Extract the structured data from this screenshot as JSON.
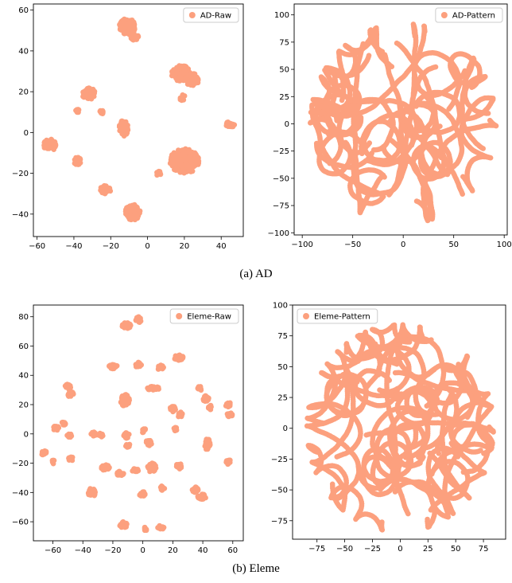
{
  "captions": {
    "a": "(a)  AD",
    "b": "(b)  Eleme"
  },
  "colors": {
    "points": "#FCA07E"
  },
  "chart_data": [
    {
      "type": "scatter",
      "id": "ad-raw",
      "legend": "AD-Raw",
      "legend_loc": "top-right",
      "xlim": [
        -62,
        52
      ],
      "ylim": [
        -51,
        63
      ],
      "xticks": [
        -60,
        -40,
        -20,
        0,
        20,
        40
      ],
      "yticks": [
        -40,
        -20,
        0,
        20,
        40,
        60
      ],
      "grid": false,
      "clusters": [
        {
          "x": -11,
          "y": 52,
          "rx": 4.5,
          "ry": 4
        },
        {
          "x": -7,
          "y": 47,
          "rx": 2.5,
          "ry": 2
        },
        {
          "x": 18,
          "y": 29,
          "rx": 5,
          "ry": 4
        },
        {
          "x": 24,
          "y": 26,
          "rx": 4,
          "ry": 3
        },
        {
          "x": 19,
          "y": 17,
          "rx": 1.5,
          "ry": 1.5
        },
        {
          "x": -32,
          "y": 19,
          "rx": 3.5,
          "ry": 3
        },
        {
          "x": -38,
          "y": 11,
          "rx": 1.2,
          "ry": 1.2
        },
        {
          "x": -25,
          "y": 10,
          "rx": 1,
          "ry": 1
        },
        {
          "x": -13,
          "y": 2,
          "rx": 2.5,
          "ry": 4
        },
        {
          "x": 45,
          "y": 4,
          "rx": 2.5,
          "ry": 1.5
        },
        {
          "x": -53,
          "y": -6,
          "rx": 3.5,
          "ry": 3
        },
        {
          "x": 20,
          "y": -14,
          "rx": 8,
          "ry": 6
        },
        {
          "x": 6,
          "y": -20,
          "rx": 1.3,
          "ry": 1.3
        },
        {
          "x": -38,
          "y": -14,
          "rx": 2,
          "ry": 2
        },
        {
          "x": -23,
          "y": -28,
          "rx": 3,
          "ry": 2
        },
        {
          "x": -8,
          "y": -39,
          "rx": 4,
          "ry": 4
        }
      ]
    },
    {
      "type": "scatter",
      "id": "ad-pattern",
      "legend": "AD-Pattern",
      "legend_loc": "top-right",
      "xlim": [
        -108,
        103
      ],
      "ylim": [
        -102,
        110
      ],
      "xticks": [
        -100,
        -50,
        0,
        50,
        100
      ],
      "yticks": [
        -100,
        -75,
        -50,
        -25,
        0,
        25,
        50,
        75,
        100
      ],
      "grid": false,
      "shape_radius": 92,
      "strands": 34,
      "seed": 7
    },
    {
      "type": "scatter",
      "id": "eleme-raw",
      "legend": "Eleme-Raw",
      "legend_loc": "top-right",
      "xlim": [
        -73,
        67
      ],
      "ylim": [
        -73,
        88
      ],
      "xticks": [
        -60,
        -40,
        -20,
        0,
        20,
        40,
        60
      ],
      "yticks": [
        -60,
        -40,
        -20,
        0,
        20,
        40,
        60,
        80
      ],
      "grid": false,
      "clusters": [
        {
          "x": -11,
          "y": 74,
          "rx": 3,
          "ry": 2
        },
        {
          "x": -3,
          "y": 78,
          "rx": 2,
          "ry": 2
        },
        {
          "x": -20,
          "y": 46,
          "rx": 3,
          "ry": 1.5
        },
        {
          "x": -3,
          "y": 47,
          "rx": 2,
          "ry": 2
        },
        {
          "x": 12,
          "y": 45,
          "rx": 2,
          "ry": 2
        },
        {
          "x": 24,
          "y": 52,
          "rx": 3,
          "ry": 2
        },
        {
          "x": -50,
          "y": 32,
          "rx": 2,
          "ry": 2
        },
        {
          "x": -48,
          "y": 27,
          "rx": 2,
          "ry": 2
        },
        {
          "x": -12,
          "y": 23,
          "rx": 3,
          "ry": 4
        },
        {
          "x": 7,
          "y": 31,
          "rx": 4,
          "ry": 1.5
        },
        {
          "x": 38,
          "y": 31,
          "rx": 1.5,
          "ry": 1.5
        },
        {
          "x": 42,
          "y": 24,
          "rx": 2,
          "ry": 2
        },
        {
          "x": 45,
          "y": 18,
          "rx": 1.5,
          "ry": 1.5
        },
        {
          "x": 57,
          "y": 20,
          "rx": 2,
          "ry": 1.5
        },
        {
          "x": 58,
          "y": 13,
          "rx": 2,
          "ry": 1.5
        },
        {
          "x": 20,
          "y": 17,
          "rx": 2,
          "ry": 2
        },
        {
          "x": 25,
          "y": 13,
          "rx": 1.5,
          "ry": 2
        },
        {
          "x": 22,
          "y": 3,
          "rx": 1.5,
          "ry": 1.5
        },
        {
          "x": -58,
          "y": 4,
          "rx": 2,
          "ry": 2
        },
        {
          "x": -53,
          "y": 7,
          "rx": 1.5,
          "ry": 1.5
        },
        {
          "x": -49,
          "y": -1,
          "rx": 1.5,
          "ry": 1.5
        },
        {
          "x": -33,
          "y": 0,
          "rx": 2,
          "ry": 1.5
        },
        {
          "x": -28,
          "y": -1,
          "rx": 1.5,
          "ry": 1.5
        },
        {
          "x": -11,
          "y": -1,
          "rx": 2,
          "ry": 2
        },
        {
          "x": -10,
          "y": -8,
          "rx": 2,
          "ry": 1.5
        },
        {
          "x": 1,
          "y": 2,
          "rx": 1.5,
          "ry": 1.5
        },
        {
          "x": 4,
          "y": -6,
          "rx": 2,
          "ry": 2
        },
        {
          "x": 43,
          "y": -7,
          "rx": 2,
          "ry": 4
        },
        {
          "x": -66,
          "y": -13,
          "rx": 2,
          "ry": 1.5
        },
        {
          "x": -60,
          "y": -19,
          "rx": 1.5,
          "ry": 1.5
        },
        {
          "x": -48,
          "y": -17,
          "rx": 1.5,
          "ry": 1.5
        },
        {
          "x": -25,
          "y": -23,
          "rx": 3,
          "ry": 2
        },
        {
          "x": -15,
          "y": -27,
          "rx": 2.5,
          "ry": 1.5
        },
        {
          "x": -5,
          "y": -25,
          "rx": 2,
          "ry": 1.5
        },
        {
          "x": 6,
          "y": -23,
          "rx": 3,
          "ry": 3
        },
        {
          "x": 24,
          "y": -22,
          "rx": 2,
          "ry": 2
        },
        {
          "x": 57,
          "y": -19,
          "rx": 1.5,
          "ry": 2
        },
        {
          "x": -34,
          "y": -40,
          "rx": 2.5,
          "ry": 3
        },
        {
          "x": 0,
          "y": -41,
          "rx": 2.5,
          "ry": 1.5
        },
        {
          "x": 13,
          "y": -37,
          "rx": 1.5,
          "ry": 1.5
        },
        {
          "x": 35,
          "y": -38,
          "rx": 2,
          "ry": 2
        },
        {
          "x": 39,
          "y": -43,
          "rx": 3,
          "ry": 2
        },
        {
          "x": -13,
          "y": -62,
          "rx": 3,
          "ry": 2
        },
        {
          "x": 2,
          "y": -65,
          "rx": 1.5,
          "ry": 1.5
        },
        {
          "x": 12,
          "y": -64,
          "rx": 2,
          "ry": 1.5
        }
      ]
    },
    {
      "type": "scatter",
      "id": "eleme-pattern",
      "legend": "Eleme-Pattern",
      "legend_loc": "top-left",
      "xlim": [
        -97,
        95
      ],
      "ylim": [
        -90,
        100
      ],
      "xticks": [
        -75,
        -50,
        -25,
        0,
        25,
        50,
        75
      ],
      "yticks": [
        -75,
        -50,
        -25,
        0,
        25,
        50,
        75,
        100
      ],
      "grid": false,
      "shape_radius": 84,
      "strands": 38,
      "seed": 13
    }
  ]
}
